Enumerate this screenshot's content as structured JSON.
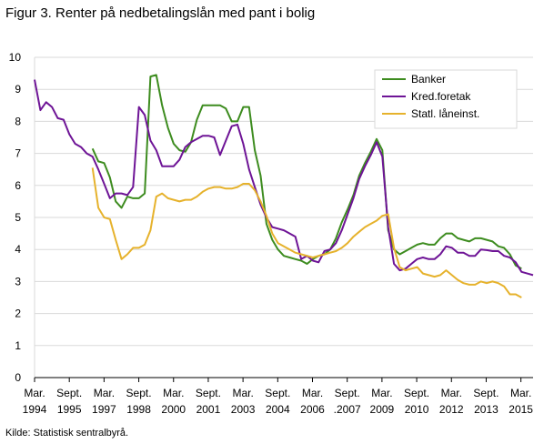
{
  "title": "Figur 3. Renter på nedbetalingslån med pant i bolig",
  "source": "Kilde: Statistisk sentralbyrå.",
  "colors": {
    "banker": "#3d8c1f",
    "kred": "#6e1496",
    "statl": "#e6b22c",
    "grid": "#dadada",
    "axis": "#000000"
  },
  "chart_data": {
    "type": "line",
    "title": "Figur 3. Renter på nedbetalingslån med pant i bolig",
    "xlabel": "",
    "ylabel": "",
    "ylim": [
      0,
      10
    ],
    "yticks": [
      0,
      1,
      2,
      3,
      4,
      5,
      6,
      7,
      8,
      9,
      10
    ],
    "xlim": [
      1994.0,
      2015.25
    ],
    "xticks": [
      {
        "x": 1994.0,
        "top": "Mar.",
        "bottom": "1994"
      },
      {
        "x": 1995.5,
        "top": "Sept.",
        "bottom": "1995"
      },
      {
        "x": 1997.0,
        "top": "Mar.",
        "bottom": "1997"
      },
      {
        "x": 1998.5,
        "top": "Sept.",
        "bottom": "1998"
      },
      {
        "x": 2000.0,
        "top": "Mar.",
        "bottom": "2000"
      },
      {
        "x": 2001.5,
        "top": "Sept.",
        "bottom": "2001"
      },
      {
        "x": 2003.0,
        "top": "Mar.",
        "bottom": "2003"
      },
      {
        "x": 2004.5,
        "top": "Sept.",
        "bottom": "2004"
      },
      {
        "x": 2006.0,
        "top": "Mar.",
        "bottom": "2006"
      },
      {
        "x": 2007.5,
        "top": "Sept.",
        "bottom": ".2007"
      },
      {
        "x": 2009.0,
        "top": "Mar.",
        "bottom": "2009"
      },
      {
        "x": 2010.5,
        "top": "Sept.",
        "bottom": "2010"
      },
      {
        "x": 2012.0,
        "top": "Mar.",
        "bottom": "2012"
      },
      {
        "x": 2013.5,
        "top": "Sept.",
        "bottom": "2013"
      },
      {
        "x": 2015.0,
        "top": "Mar.",
        "bottom": "2015"
      }
    ],
    "grid": true,
    "legend": "top-right",
    "series": [
      {
        "name": "Banker",
        "color": "#3d8c1f",
        "points": [
          [
            1995.5,
            7.15
          ],
          [
            1995.75,
            6.75
          ],
          [
            1996.0,
            6.7
          ],
          [
            1996.25,
            6.25
          ],
          [
            1996.5,
            5.5
          ],
          [
            1996.75,
            5.3
          ],
          [
            1997.0,
            5.65
          ],
          [
            1997.25,
            5.6
          ],
          [
            1997.5,
            5.6
          ],
          [
            1997.75,
            5.75
          ],
          [
            1998.0,
            9.4
          ],
          [
            1998.25,
            9.45
          ],
          [
            1998.5,
            8.5
          ],
          [
            1998.75,
            7.8
          ],
          [
            1999.0,
            7.3
          ],
          [
            1999.25,
            7.1
          ],
          [
            1999.5,
            7.05
          ],
          [
            1999.75,
            7.35
          ],
          [
            2000.0,
            8.05
          ],
          [
            2000.25,
            8.5
          ],
          [
            2000.5,
            8.5
          ],
          [
            2000.75,
            8.5
          ],
          [
            2001.0,
            8.5
          ],
          [
            2001.25,
            8.4
          ],
          [
            2001.5,
            8.0
          ],
          [
            2001.75,
            8.0
          ],
          [
            2002.0,
            8.45
          ],
          [
            2002.25,
            8.45
          ],
          [
            2002.5,
            7.1
          ],
          [
            2002.75,
            6.3
          ],
          [
            2003.0,
            4.8
          ],
          [
            2003.25,
            4.3
          ],
          [
            2003.5,
            4.0
          ],
          [
            2003.75,
            3.8
          ],
          [
            2004.0,
            3.75
          ],
          [
            2004.25,
            3.7
          ],
          [
            2004.5,
            3.65
          ],
          [
            2004.75,
            3.55
          ],
          [
            2005.0,
            3.7
          ],
          [
            2005.25,
            3.8
          ],
          [
            2005.5,
            3.85
          ],
          [
            2005.75,
            4.0
          ],
          [
            2006.0,
            4.35
          ],
          [
            2006.25,
            4.85
          ],
          [
            2006.5,
            5.25
          ],
          [
            2006.75,
            5.7
          ],
          [
            2007.0,
            6.3
          ],
          [
            2007.25,
            6.7
          ],
          [
            2007.5,
            7.05
          ],
          [
            2007.75,
            7.45
          ],
          [
            2008.0,
            7.1
          ],
          [
            2008.25,
            4.6
          ],
          [
            2008.5,
            4.0
          ],
          [
            2008.75,
            3.85
          ],
          [
            2009.0,
            3.95
          ],
          [
            2009.25,
            4.05
          ],
          [
            2009.5,
            4.15
          ],
          [
            2009.75,
            4.2
          ],
          [
            2010.0,
            4.15
          ],
          [
            2010.25,
            4.15
          ],
          [
            2010.5,
            4.35
          ],
          [
            2010.75,
            4.5
          ],
          [
            2011.0,
            4.5
          ],
          [
            2011.25,
            4.35
          ],
          [
            2011.5,
            4.3
          ],
          [
            2011.75,
            4.25
          ],
          [
            2012.0,
            4.35
          ],
          [
            2012.25,
            4.35
          ],
          [
            2012.5,
            4.3
          ],
          [
            2012.75,
            4.25
          ],
          [
            2013.0,
            4.1
          ],
          [
            2013.25,
            4.05
          ],
          [
            2013.5,
            3.85
          ],
          [
            2013.75,
            3.5
          ],
          [
            2014.0,
            3.4
          ]
        ]
      },
      {
        "name": "Kred.foretak",
        "color": "#6e1496",
        "points": [
          [
            1993.0,
            9.3
          ],
          [
            1993.25,
            8.35
          ],
          [
            1993.5,
            8.6
          ],
          [
            1993.75,
            8.45
          ],
          [
            1994.0,
            8.1
          ],
          [
            1994.25,
            8.05
          ],
          [
            1994.5,
            7.6
          ],
          [
            1994.75,
            7.3
          ],
          [
            1995.0,
            7.2
          ],
          [
            1995.25,
            7.0
          ],
          [
            1995.5,
            6.9
          ],
          [
            1995.75,
            6.5
          ],
          [
            1996.0,
            6.05
          ],
          [
            1996.25,
            5.6
          ],
          [
            1996.5,
            5.75
          ],
          [
            1996.75,
            5.75
          ],
          [
            1997.0,
            5.7
          ],
          [
            1997.25,
            5.95
          ],
          [
            1997.5,
            8.45
          ],
          [
            1997.75,
            8.2
          ],
          [
            1998.0,
            7.4
          ],
          [
            1998.25,
            7.1
          ],
          [
            1998.5,
            6.6
          ],
          [
            1998.75,
            6.6
          ],
          [
            1999.0,
            6.6
          ],
          [
            1999.25,
            6.8
          ],
          [
            1999.5,
            7.2
          ],
          [
            1999.75,
            7.35
          ],
          [
            2000.0,
            7.45
          ],
          [
            2000.25,
            7.55
          ],
          [
            2000.5,
            7.55
          ],
          [
            2000.75,
            7.5
          ],
          [
            2001.0,
            6.95
          ],
          [
            2001.25,
            7.4
          ],
          [
            2001.5,
            7.85
          ],
          [
            2001.75,
            7.9
          ],
          [
            2002.0,
            7.3
          ],
          [
            2002.25,
            6.5
          ],
          [
            2002.5,
            5.95
          ],
          [
            2002.75,
            5.4
          ],
          [
            2003.0,
            5.0
          ],
          [
            2003.25,
            4.7
          ],
          [
            2003.5,
            4.65
          ],
          [
            2003.75,
            4.6
          ],
          [
            2004.0,
            4.5
          ],
          [
            2004.25,
            4.4
          ],
          [
            2004.5,
            3.7
          ],
          [
            2004.75,
            3.8
          ],
          [
            2005.0,
            3.65
          ],
          [
            2005.25,
            3.6
          ],
          [
            2005.5,
            3.95
          ],
          [
            2005.75,
            4.0
          ],
          [
            2006.0,
            4.2
          ],
          [
            2006.25,
            4.6
          ],
          [
            2006.5,
            5.1
          ],
          [
            2006.75,
            5.6
          ],
          [
            2007.0,
            6.2
          ],
          [
            2007.25,
            6.6
          ],
          [
            2007.5,
            6.95
          ],
          [
            2007.75,
            7.35
          ],
          [
            2008.0,
            6.9
          ],
          [
            2008.25,
            4.7
          ],
          [
            2008.5,
            3.55
          ],
          [
            2008.75,
            3.35
          ],
          [
            2009.0,
            3.4
          ],
          [
            2009.25,
            3.55
          ],
          [
            2009.5,
            3.7
          ],
          [
            2009.75,
            3.75
          ],
          [
            2010.0,
            3.7
          ],
          [
            2010.25,
            3.7
          ],
          [
            2010.5,
            3.85
          ],
          [
            2010.75,
            4.1
          ],
          [
            2011.0,
            4.05
          ],
          [
            2011.25,
            3.9
          ],
          [
            2011.5,
            3.9
          ],
          [
            2011.75,
            3.8
          ],
          [
            2012.0,
            3.8
          ],
          [
            2012.25,
            4.0
          ],
          [
            2012.5,
            3.98
          ],
          [
            2012.75,
            3.95
          ],
          [
            2013.0,
            3.95
          ],
          [
            2013.25,
            3.8
          ],
          [
            2013.5,
            3.75
          ],
          [
            2013.75,
            3.6
          ],
          [
            2014.0,
            3.3
          ],
          [
            2014.25,
            3.25
          ],
          [
            2014.5,
            3.2
          ]
        ]
      },
      {
        "name": "Statl. låneinst.",
        "color": "#e6b22c",
        "points": [
          [
            1995.5,
            6.55
          ],
          [
            1995.75,
            5.3
          ],
          [
            1996.0,
            5.0
          ],
          [
            1996.25,
            4.95
          ],
          [
            1996.5,
            4.3
          ],
          [
            1996.75,
            3.7
          ],
          [
            1997.0,
            3.85
          ],
          [
            1997.25,
            4.05
          ],
          [
            1997.5,
            4.05
          ],
          [
            1997.75,
            4.15
          ],
          [
            1998.0,
            4.6
          ],
          [
            1998.25,
            5.65
          ],
          [
            1998.5,
            5.75
          ],
          [
            1998.75,
            5.6
          ],
          [
            1999.0,
            5.55
          ],
          [
            1999.25,
            5.5
          ],
          [
            1999.5,
            5.55
          ],
          [
            1999.75,
            5.55
          ],
          [
            2000.0,
            5.65
          ],
          [
            2000.25,
            5.8
          ],
          [
            2000.5,
            5.9
          ],
          [
            2000.75,
            5.95
          ],
          [
            2001.0,
            5.95
          ],
          [
            2001.25,
            5.9
          ],
          [
            2001.5,
            5.9
          ],
          [
            2001.75,
            5.95
          ],
          [
            2002.0,
            6.05
          ],
          [
            2002.25,
            6.05
          ],
          [
            2002.5,
            5.85
          ],
          [
            2002.75,
            5.5
          ],
          [
            2003.0,
            5.05
          ],
          [
            2003.25,
            4.5
          ],
          [
            2003.5,
            4.2
          ],
          [
            2003.75,
            4.1
          ],
          [
            2004.0,
            4.0
          ],
          [
            2004.25,
            3.9
          ],
          [
            2004.5,
            3.85
          ],
          [
            2004.75,
            3.8
          ],
          [
            2005.0,
            3.75
          ],
          [
            2005.25,
            3.8
          ],
          [
            2005.5,
            3.85
          ],
          [
            2005.75,
            3.9
          ],
          [
            2006.0,
            3.95
          ],
          [
            2006.25,
            4.05
          ],
          [
            2006.5,
            4.2
          ],
          [
            2006.75,
            4.4
          ],
          [
            2007.0,
            4.55
          ],
          [
            2007.25,
            4.7
          ],
          [
            2007.5,
            4.8
          ],
          [
            2007.75,
            4.9
          ],
          [
            2008.0,
            5.05
          ],
          [
            2008.25,
            5.1
          ],
          [
            2008.5,
            4.05
          ],
          [
            2008.75,
            3.45
          ],
          [
            2009.0,
            3.35
          ],
          [
            2009.25,
            3.4
          ],
          [
            2009.5,
            3.45
          ],
          [
            2009.75,
            3.25
          ],
          [
            2010.0,
            3.2
          ],
          [
            2010.25,
            3.15
          ],
          [
            2010.5,
            3.2
          ],
          [
            2010.75,
            3.35
          ],
          [
            2011.0,
            3.2
          ],
          [
            2011.25,
            3.05
          ],
          [
            2011.5,
            2.95
          ],
          [
            2011.75,
            2.9
          ],
          [
            2012.0,
            2.9
          ],
          [
            2012.25,
            3.0
          ],
          [
            2012.5,
            2.95
          ],
          [
            2012.75,
            3.0
          ],
          [
            2013.0,
            2.95
          ],
          [
            2013.25,
            2.85
          ],
          [
            2013.5,
            2.6
          ],
          [
            2013.75,
            2.6
          ],
          [
            2014.0,
            2.5
          ]
        ]
      }
    ]
  }
}
